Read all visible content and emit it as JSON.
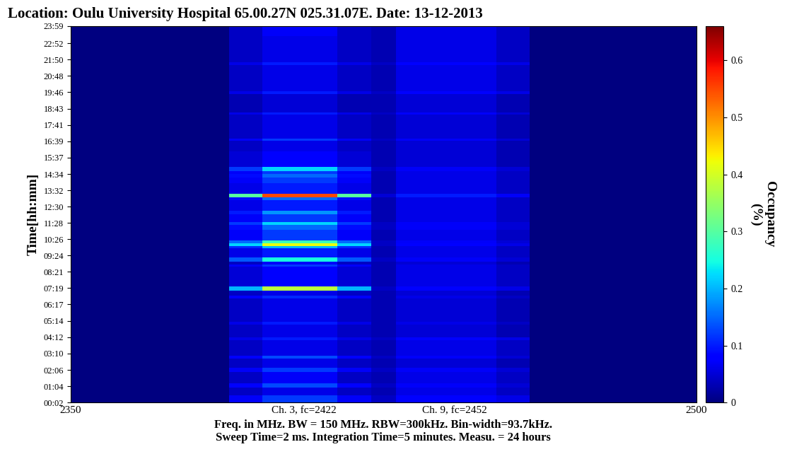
{
  "chart_data": {
    "type": "heatmap",
    "title": "Location: Oulu University Hospital 65.00.27N 025.31.07E. Date: 13-12-2013",
    "x_label": "Freq. in MHz. BW = 150 MHz. RBW=300kHz. Bin-width=93.7kHz.\nSweep Time=2 ms. Integration Time=5 minutes. Measu. = 24 hours",
    "y_label": "Time[hh:mm]",
    "xlim": [
      2350,
      2500
    ],
    "xticks": [
      2350,
      {
        "value": 2406,
        "label": "Ch. 3, fc=2422"
      },
      {
        "value": 2442,
        "label": "Ch. 9, fc=2452"
      },
      2500
    ],
    "ylim": [
      2,
      1439
    ],
    "yticks": [
      {
        "value": 2,
        "label": "00:02"
      },
      {
        "value": 64,
        "label": "01:04"
      },
      {
        "value": 126,
        "label": "02:06"
      },
      {
        "value": 190,
        "label": "03:10"
      },
      {
        "value": 252,
        "label": "04:12"
      },
      {
        "value": 314,
        "label": "05:14"
      },
      {
        "value": 377,
        "label": "06:17"
      },
      {
        "value": 439,
        "label": "07:19"
      },
      {
        "value": 501,
        "label": "08:21"
      },
      {
        "value": 564,
        "label": "09:24"
      },
      {
        "value": 626,
        "label": "10:26"
      },
      {
        "value": 688,
        "label": "11:28"
      },
      {
        "value": 750,
        "label": "12:30"
      },
      {
        "value": 812,
        "label": "13:32"
      },
      {
        "value": 874,
        "label": "14:34"
      },
      {
        "value": 937,
        "label": "15:37"
      },
      {
        "value": 999,
        "label": "16:39"
      },
      {
        "value": 1061,
        "label": "17:41"
      },
      {
        "value": 1123,
        "label": "18:43"
      },
      {
        "value": 1186,
        "label": "19:46"
      },
      {
        "value": 1248,
        "label": "20:48"
      },
      {
        "value": 1310,
        "label": "21:50"
      },
      {
        "value": 1372,
        "label": "22:52"
      },
      {
        "value": 1439,
        "label": "23:59"
      }
    ],
    "x_edges": [
      2350,
      2388,
      2396,
      2414,
      2422,
      2428,
      2452,
      2460,
      2500
    ],
    "y_edges": [
      2,
      30,
      60,
      75,
      120,
      135,
      170,
      180,
      240,
      250,
      300,
      310,
      400,
      410,
      430,
      445,
      520,
      530,
      540,
      555,
      590,
      600,
      610,
      620,
      660,
      680,
      690,
      720,
      735,
      775,
      785,
      800,
      840,
      860,
      875,
      885,
      900,
      960,
      1000,
      1010,
      1100,
      1110,
      1180,
      1190,
      1290,
      1300,
      1400,
      1439
    ],
    "cells": [
      [
        0,
        0.07,
        0.12,
        0.07,
        0.04,
        0.08,
        0.06,
        0
      ],
      [
        0,
        0.04,
        0.06,
        0.04,
        0.03,
        0.06,
        0.04,
        0
      ],
      [
        0,
        0.08,
        0.13,
        0.08,
        0.04,
        0.07,
        0.05,
        0
      ],
      [
        0,
        0.04,
        0.07,
        0.04,
        0.03,
        0.06,
        0.04,
        0
      ],
      [
        0,
        0.07,
        0.12,
        0.07,
        0.04,
        0.07,
        0.05,
        0
      ],
      [
        0,
        0.04,
        0.06,
        0.04,
        0.03,
        0.05,
        0.03,
        0
      ],
      [
        0,
        0.08,
        0.13,
        0.08,
        0.04,
        0.07,
        0.05,
        0
      ],
      [
        0,
        0.04,
        0.06,
        0.04,
        0.03,
        0.06,
        0.04,
        0
      ],
      [
        0,
        0.06,
        0.1,
        0.06,
        0.04,
        0.08,
        0.06,
        0
      ],
      [
        0,
        0.04,
        0.06,
        0.04,
        0.03,
        0.05,
        0.03,
        0
      ],
      [
        0,
        0.06,
        0.1,
        0.06,
        0.03,
        0.06,
        0.04,
        0
      ],
      [
        0,
        0.04,
        0.06,
        0.04,
        0.03,
        0.05,
        0.03,
        0
      ],
      [
        0,
        0.07,
        0.11,
        0.07,
        0.03,
        0.06,
        0.04,
        0
      ],
      [
        0,
        0.04,
        0.06,
        0.04,
        0.03,
        0.05,
        0.03,
        0
      ],
      [
        0,
        0.2,
        0.38,
        0.2,
        0.04,
        0.08,
        0.06,
        0
      ],
      [
        0,
        0.05,
        0.08,
        0.05,
        0.03,
        0.06,
        0.04,
        0
      ],
      [
        0,
        0.07,
        0.12,
        0.07,
        0.03,
        0.06,
        0.04,
        0
      ],
      [
        0,
        0.04,
        0.07,
        0.04,
        0.03,
        0.05,
        0.03,
        0
      ],
      [
        0,
        0.14,
        0.25,
        0.14,
        0.04,
        0.07,
        0.05,
        0
      ],
      [
        0,
        0.06,
        0.1,
        0.06,
        0.03,
        0.06,
        0.04,
        0
      ],
      [
        0,
        0.11,
        0.2,
        0.11,
        0.03,
        0.06,
        0.04,
        0
      ],
      [
        0,
        0.22,
        0.42,
        0.22,
        0.04,
        0.08,
        0.06,
        0
      ],
      [
        0,
        0.15,
        0.28,
        0.15,
        0.04,
        0.07,
        0.05,
        0
      ],
      [
        0,
        0.07,
        0.12,
        0.07,
        0.03,
        0.06,
        0.04,
        0
      ],
      [
        0,
        0.09,
        0.15,
        0.09,
        0.04,
        0.07,
        0.05,
        0
      ],
      [
        0,
        0.12,
        0.22,
        0.12,
        0.04,
        0.07,
        0.05,
        0
      ],
      [
        0,
        0.07,
        0.12,
        0.07,
        0.03,
        0.06,
        0.04,
        0
      ],
      [
        0,
        0.1,
        0.18,
        0.1,
        0.03,
        0.06,
        0.04,
        0
      ],
      [
        0,
        0.06,
        0.1,
        0.06,
        0.03,
        0.06,
        0.04,
        0
      ],
      [
        0,
        0.09,
        0.15,
        0.09,
        0.03,
        0.06,
        0.04,
        0
      ],
      [
        0,
        0.3,
        0.55,
        0.3,
        0.05,
        0.1,
        0.07,
        0
      ],
      [
        0,
        0.06,
        0.1,
        0.06,
        0.03,
        0.06,
        0.04,
        0
      ],
      [
        0,
        0.07,
        0.12,
        0.07,
        0.03,
        0.06,
        0.04,
        0
      ],
      [
        0,
        0.09,
        0.15,
        0.09,
        0.03,
        0.06,
        0.04,
        0
      ],
      [
        0,
        0.07,
        0.12,
        0.07,
        0.03,
        0.06,
        0.04,
        0
      ],
      [
        0,
        0.12,
        0.22,
        0.12,
        0.04,
        0.07,
        0.05,
        0
      ],
      [
        0,
        0.05,
        0.08,
        0.05,
        0.03,
        0.05,
        0.03,
        0
      ],
      [
        0,
        0.04,
        0.06,
        0.04,
        0.03,
        0.05,
        0.03,
        0
      ],
      [
        0,
        0.07,
        0.12,
        0.07,
        0.04,
        0.07,
        0.05,
        0
      ],
      [
        0,
        0.04,
        0.06,
        0.04,
        0.03,
        0.05,
        0.03,
        0
      ],
      [
        0,
        0.06,
        0.1,
        0.06,
        0.04,
        0.07,
        0.05,
        0
      ],
      [
        0,
        0.03,
        0.05,
        0.03,
        0.03,
        0.05,
        0.03,
        0
      ],
      [
        0,
        0.06,
        0.1,
        0.06,
        0.04,
        0.08,
        0.06,
        0
      ],
      [
        0,
        0.04,
        0.06,
        0.04,
        0.03,
        0.06,
        0.04,
        0
      ],
      [
        0,
        0.06,
        0.1,
        0.06,
        0.04,
        0.08,
        0.06,
        0
      ],
      [
        0,
        0.04,
        0.06,
        0.04,
        0.03,
        0.06,
        0.04,
        0
      ],
      [
        0,
        0.04,
        0.07,
        0.04,
        0.03,
        0.06,
        0.04,
        0
      ]
    ],
    "colorbar": {
      "label": "Occupancy\n(%)",
      "range": [
        0,
        0.66
      ],
      "ticks": [
        0,
        0.1,
        0.2,
        0.3,
        0.4,
        0.5,
        0.6
      ]
    }
  }
}
